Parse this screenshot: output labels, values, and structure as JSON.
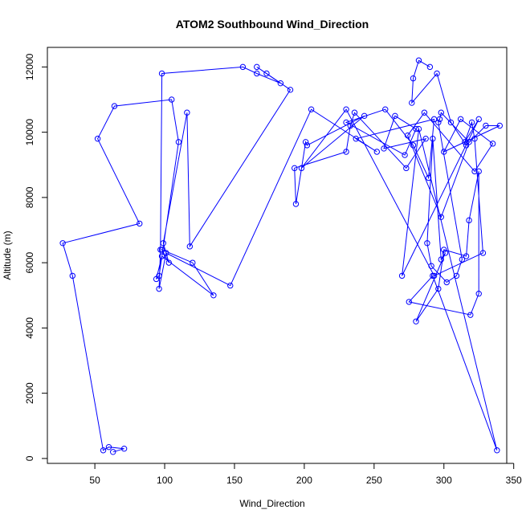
{
  "chart_data": {
    "type": "line",
    "title": "ATOM2 Southbound Wind_Direction",
    "xlabel": "Wind_Direction",
    "ylabel": "Altitude (m)",
    "xlim": [
      16,
      345
    ],
    "ylim": [
      -150,
      12600
    ],
    "x_ticks": [
      50,
      100,
      150,
      200,
      250,
      300,
      350
    ],
    "y_ticks": [
      0,
      2000,
      4000,
      6000,
      8000,
      10000,
      12000
    ],
    "grid": false,
    "legend": "none",
    "series": [
      {
        "color": "#0000ff",
        "marker": "open-circle",
        "x": [
          290,
          282,
          278,
          277,
          295,
          305,
          316,
          330,
          340,
          300,
          312,
          335,
          322,
          286,
          274,
          298,
          318,
          298,
          297,
          296,
          313,
          309,
          302,
          291,
          288,
          292,
          298,
          301,
          280,
          296,
          300,
          316,
          318,
          325,
          325,
          319,
          275,
          292,
          338,
          282,
          270,
          325,
          315,
          320,
          322,
          328,
          293,
          230,
          198,
          243,
          202,
          201,
          194,
          193,
          230,
          233,
          236,
          273,
          287,
          257,
          265,
          280,
          272,
          230,
          258,
          278,
          289,
          293,
          237,
          252,
          205,
          147,
          101,
          96,
          97,
          98,
          156,
          166,
          183,
          166,
          173,
          190,
          118,
          116,
          99,
          103,
          98,
          120,
          135,
          98,
          94,
          96,
          110,
          105,
          64,
          52,
          82,
          27,
          34,
          56,
          60,
          71,
          63
        ],
        "y": [
          12000,
          12200,
          11650,
          10900,
          11800,
          10300,
          9600,
          10200,
          10200,
          9400,
          10400,
          9650,
          8800,
          10600,
          9900,
          7400,
          9700,
          10600,
          10400,
          10300,
          6100,
          5600,
          5400,
          5900,
          6600,
          9800,
          6100,
          6300,
          4200,
          5200,
          6400,
          6200,
          7300,
          8800,
          5050,
          4400,
          4800,
          5600,
          250,
          10100,
          5600,
          10400,
          9700,
          10300,
          9800,
          6300,
          5600,
          10700,
          8900,
          10500,
          9600,
          9700,
          7800,
          8900,
          9400,
          10200,
          10600,
          8900,
          9800,
          9500,
          10500,
          10100,
          9300,
          10300,
          10700,
          9600,
          8600,
          10400,
          9800,
          9400,
          10700,
          5300,
          6300,
          5200,
          6400,
          11800,
          12000,
          11800,
          11500,
          12000,
          11800,
          11300,
          6500,
          10600,
          6600,
          6000,
          6400,
          6000,
          5000,
          6200,
          5500,
          5600,
          9700,
          11000,
          10800,
          9800,
          7200,
          6600,
          5600,
          250,
          350,
          300,
          200
        ]
      }
    ]
  }
}
